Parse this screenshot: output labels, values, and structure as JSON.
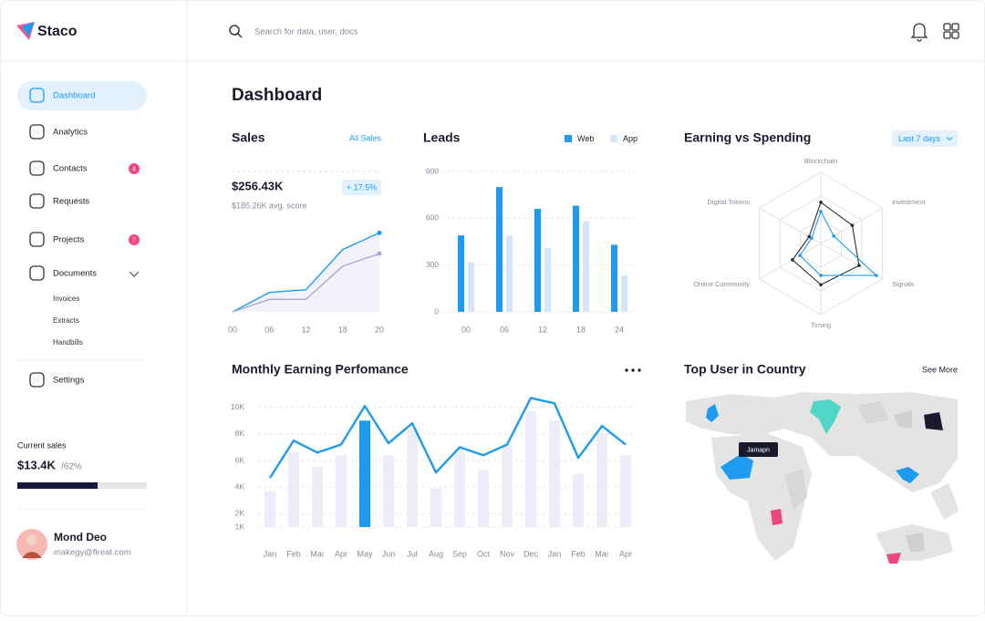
{
  "brand": "Staco",
  "search_placeholder": "Search for data, user, docs",
  "nav": [
    {
      "label": "Dashboard"
    },
    {
      "label": "Analytics"
    },
    {
      "label": "Contacts",
      "badge": 4
    },
    {
      "label": "Requests"
    },
    {
      "label": "Projects",
      "badge": 7
    },
    {
      "label": "Documents",
      "children": [
        "Invoices",
        "Extracts",
        "Handbills"
      ]
    },
    {
      "label": "Settings"
    }
  ],
  "current_sales": {
    "label": "Current sales",
    "value": "$13.4K",
    "progress": 62,
    "progress_label": "/62%"
  },
  "user": {
    "name": "Mond Deo",
    "email": "makegy@fireat.com"
  },
  "page_title": "Dashboard",
  "chart_data": [
    {
      "type": "line",
      "title": "Sales",
      "link": "All Sales",
      "value": "$256.43K",
      "change": "+ 17.5%",
      "subtitle": "$185.26K avg. score",
      "categories": [
        "00",
        "06",
        "12",
        "18",
        "20"
      ],
      "ylim": [
        0,
        100
      ],
      "series": [
        {
          "color": "#1e9bf0",
          "values": [
            0,
            14,
            16,
            45,
            57
          ]
        },
        {
          "color": "#a9a9d6",
          "values": [
            0,
            9,
            9,
            33,
            42
          ]
        }
      ]
    },
    {
      "type": "bar",
      "title": "Leads",
      "categories": [
        "00",
        "06",
        "12",
        "18",
        "24"
      ],
      "ylim": [
        0,
        900
      ],
      "yticks": [
        0,
        300,
        600,
        900
      ],
      "grid": true,
      "series": [
        {
          "name": "Web",
          "color": "#1e9bf0",
          "values": [
            490,
            800,
            660,
            680,
            430
          ]
        },
        {
          "name": "App",
          "color": "#d6e6fa",
          "values": [
            320,
            490,
            410,
            580,
            235
          ]
        }
      ]
    },
    {
      "type": "radar",
      "title": "Earning vs Spending",
      "filter": "Last 7 days",
      "axes": [
        "Blockchain",
        "Investment",
        "Signals",
        "Timing",
        "Online Community",
        "Digital Tokens"
      ],
      "rlim": [
        0,
        100
      ],
      "series": [
        {
          "color": "#2b2b2b",
          "values": [
            58,
            51,
            62,
            58,
            46,
            19
          ]
        },
        {
          "color": "#1e9bf0",
          "values": [
            45,
            21,
            90,
            45,
            34,
            15
          ]
        }
      ]
    },
    {
      "type": "combo",
      "title": "Monthly Earning Perfomance",
      "categories": [
        "Jan",
        "Feb",
        "Mar",
        "Apr",
        "May",
        "Jun",
        "Jul",
        "Aug",
        "Sep",
        "Oct",
        "Nov",
        "Dec",
        "Jan",
        "Feb",
        "Mar",
        "Apr"
      ],
      "ylim": [
        1000,
        10800
      ],
      "yticks": [
        {
          "value": 1000,
          "label": "1K"
        },
        {
          "value": 2000,
          "label": "2K"
        },
        {
          "value": 4000,
          "label": "4K"
        },
        {
          "value": 6000,
          "label": "6K"
        },
        {
          "value": 8000,
          "label": "8K"
        },
        {
          "value": 10000,
          "label": "10K"
        }
      ],
      "grid": true,
      "bars": {
        "colors": [
          "#ecedf9",
          "#ecedf9",
          "#ecedf9",
          "#ecedf9",
          "#1e9bf0",
          "#ecedf9",
          "#ecedf9",
          "#ecedf9",
          "#ecedf9",
          "#ecedf9",
          "#ecedf9",
          "#ecedf9",
          "#ecedf9",
          "#ecedf9",
          "#ecedf9",
          "#ecedf9"
        ],
        "values": [
          3700,
          6600,
          5500,
          6400,
          9000,
          6400,
          8400,
          3900,
          6600,
          5300,
          7200,
          9700,
          9000,
          5000,
          8100,
          6400
        ]
      },
      "line": {
        "color": "#1e9bf0",
        "values": [
          4700,
          7500,
          6600,
          7200,
          10100,
          7300,
          8800,
          5100,
          7000,
          6400,
          7200,
          10700,
          10300,
          6200,
          8600,
          7200
        ]
      }
    }
  ],
  "map": {
    "title": "Top User in Country",
    "link": "See More",
    "tooltip": "Jamapn"
  }
}
